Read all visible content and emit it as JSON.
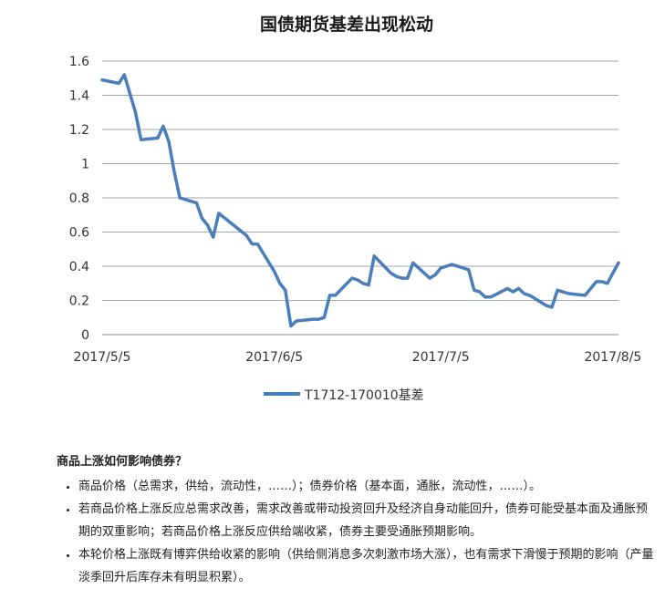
{
  "chart_data": {
    "type": "line",
    "title": "国债期货基差出现松动",
    "xlabel": "",
    "ylabel": "",
    "ylim": [
      0,
      1.6
    ],
    "yticks": [
      0,
      0.2,
      0.4,
      0.6,
      0.8,
      1,
      1.2,
      1.4,
      1.6
    ],
    "ytick_labels": [
      "0",
      "0.2",
      "0.4",
      "0.6",
      "0.8",
      "1",
      "1.2",
      "1.4",
      "1.6"
    ],
    "xlim": [
      "2017-05-05",
      "2017-08-06"
    ],
    "xticks": [
      "2017-05-05",
      "2017-06-05",
      "2017-07-05",
      "2017-08-05"
    ],
    "xtick_labels": [
      "2017/5/5",
      "2017/6/5",
      "2017/7/5",
      "2017/8/5"
    ],
    "grid": true,
    "legend_position": "bottom",
    "series": [
      {
        "name": "T1712-170010基差",
        "color": "#4a7ebb",
        "points": [
          [
            "2017-05-05",
            1.49
          ],
          [
            "2017-05-08",
            1.47
          ],
          [
            "2017-05-09",
            1.52
          ],
          [
            "2017-05-10",
            1.41
          ],
          [
            "2017-05-11",
            1.3
          ],
          [
            "2017-05-12",
            1.14
          ],
          [
            "2017-05-15",
            1.15
          ],
          [
            "2017-05-16",
            1.22
          ],
          [
            "2017-05-17",
            1.13
          ],
          [
            "2017-05-18",
            0.95
          ],
          [
            "2017-05-19",
            0.8
          ],
          [
            "2017-05-22",
            0.77
          ],
          [
            "2017-05-23",
            0.68
          ],
          [
            "2017-05-24",
            0.64
          ],
          [
            "2017-05-25",
            0.57
          ],
          [
            "2017-05-26",
            0.71
          ],
          [
            "2017-05-31",
            0.58
          ],
          [
            "2017-06-01",
            0.53
          ],
          [
            "2017-06-02",
            0.53
          ],
          [
            "2017-06-05",
            0.37
          ],
          [
            "2017-06-06",
            0.3
          ],
          [
            "2017-06-07",
            0.26
          ],
          [
            "2017-06-08",
            0.05
          ],
          [
            "2017-06-09",
            0.08
          ],
          [
            "2017-06-12",
            0.09
          ],
          [
            "2017-06-13",
            0.09
          ],
          [
            "2017-06-14",
            0.1
          ],
          [
            "2017-06-15",
            0.23
          ],
          [
            "2017-06-16",
            0.23
          ],
          [
            "2017-06-19",
            0.33
          ],
          [
            "2017-06-20",
            0.32
          ],
          [
            "2017-06-21",
            0.3
          ],
          [
            "2017-06-22",
            0.29
          ],
          [
            "2017-06-23",
            0.46
          ],
          [
            "2017-06-26",
            0.36
          ],
          [
            "2017-06-27",
            0.34
          ],
          [
            "2017-06-28",
            0.33
          ],
          [
            "2017-06-29",
            0.33
          ],
          [
            "2017-06-30",
            0.42
          ],
          [
            "2017-07-03",
            0.33
          ],
          [
            "2017-07-04",
            0.35
          ],
          [
            "2017-07-05",
            0.39
          ],
          [
            "2017-07-06",
            0.4
          ],
          [
            "2017-07-07",
            0.41
          ],
          [
            "2017-07-10",
            0.38
          ],
          [
            "2017-07-11",
            0.26
          ],
          [
            "2017-07-12",
            0.25
          ],
          [
            "2017-07-13",
            0.22
          ],
          [
            "2017-07-14",
            0.22
          ],
          [
            "2017-07-17",
            0.27
          ],
          [
            "2017-07-18",
            0.25
          ],
          [
            "2017-07-19",
            0.27
          ],
          [
            "2017-07-20",
            0.24
          ],
          [
            "2017-07-21",
            0.23
          ],
          [
            "2017-07-24",
            0.17
          ],
          [
            "2017-07-25",
            0.16
          ],
          [
            "2017-07-26",
            0.26
          ],
          [
            "2017-07-27",
            0.25
          ],
          [
            "2017-07-28",
            0.24
          ],
          [
            "2017-07-31",
            0.23
          ],
          [
            "2017-08-01",
            0.27
          ],
          [
            "2017-08-02",
            0.31
          ],
          [
            "2017-08-03",
            0.31
          ],
          [
            "2017-08-04",
            0.3
          ],
          [
            "2017-08-05",
            0.36
          ],
          [
            "2017-08-06",
            0.42
          ]
        ]
      }
    ]
  },
  "notes": {
    "heading": "商品上涨如何影响债券？",
    "items": [
      "商品价格（总需求，供给，流动性，……）；债券价格（基本面，通胀，流动性，……）。",
      "若商品价格上涨反应总需求改善，需求改善或带动投资回升及经济自身动能回升，债券可能受基本面及通胀预期的双重影响；若商品价格上涨反应供给端收紧，债券主要受通胀预期影响。",
      "本轮价格上涨既有博弈供给收紧的影响（供给侧消息多次刺激市场大涨），也有需求下滑慢于预期的影响（产量淡季回升后库存未有明显积累）。"
    ]
  }
}
